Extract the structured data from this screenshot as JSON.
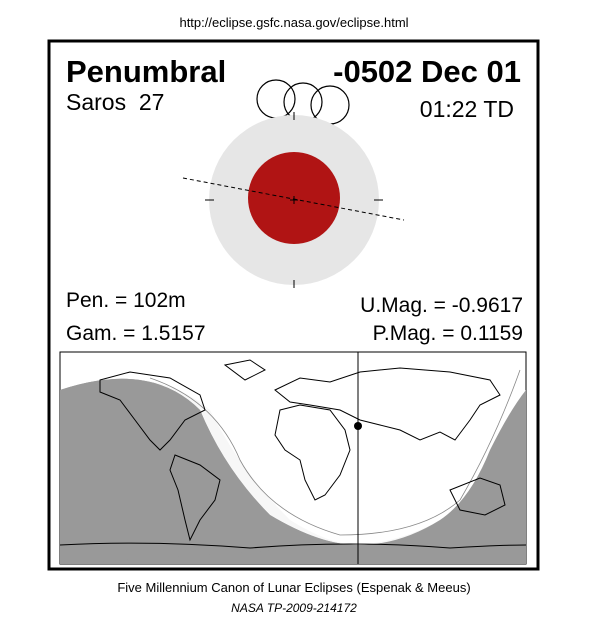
{
  "header": {
    "url": "http://eclipse.gsfc.nasa.gov/eclipse.html"
  },
  "eclipse": {
    "type": "Penumbral",
    "date": "-0502 Dec 01",
    "saros": "Saros  27",
    "time": "01:22 TD",
    "pen": "Pen. = 102m",
    "gam": "Gam. = 1.5157",
    "umag": "U.Mag. = -0.9617",
    "pmag": "P.Mag. = 0.1159"
  },
  "footer": {
    "canon": "Five Millennium Canon of Lunar Eclipses (Espenak & Meeus)",
    "reference": "NASA TP-2009-214172"
  }
}
